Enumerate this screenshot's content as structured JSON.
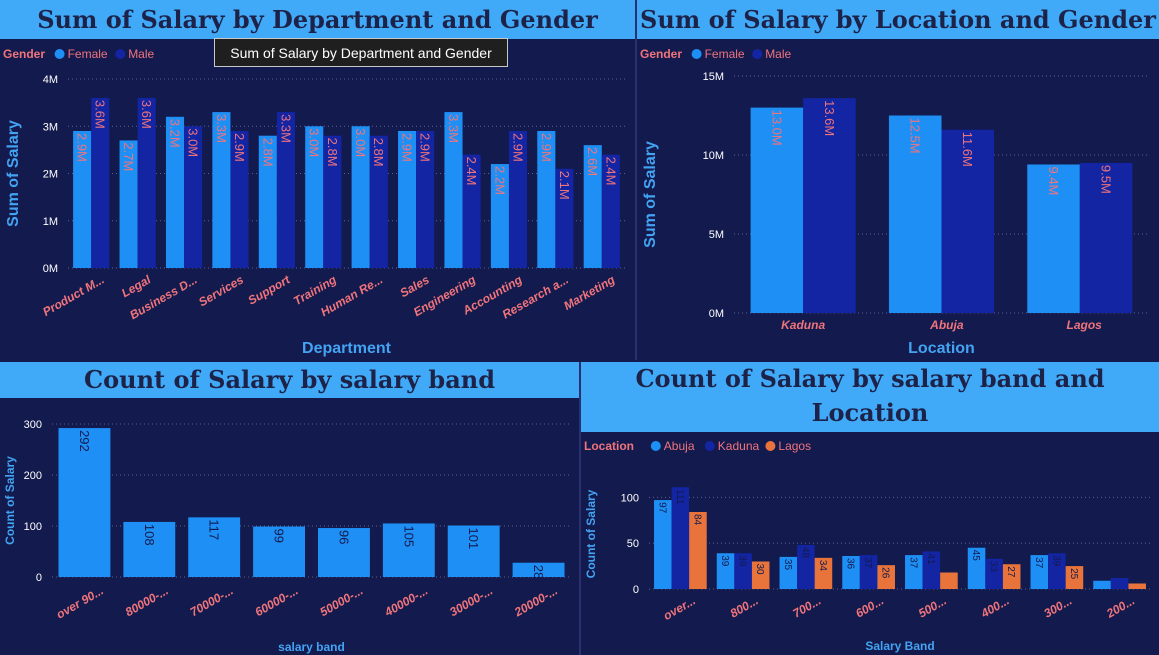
{
  "colors": {
    "female": "#1e8ff5",
    "male": "#1325a2",
    "abuja": "#1e8ff5",
    "kaduna": "#1325a2",
    "lagos": "#e8743b",
    "band": "#1e8ff5",
    "axis_label": "#43a3f3",
    "tick": "#ffffff",
    "category": "#f0747c",
    "legend_title": "#f0747c",
    "legend_text": "#f0747c",
    "data_label_light": "#f0747c",
    "data_label_dark": "#131a4d"
  },
  "tooltip": {
    "text": "Sum of Salary by Department and Gender"
  },
  "chart_data": [
    {
      "id": "dept",
      "type": "bar",
      "title": "Sum of Salary by Department and Gender",
      "legend_title": "Gender",
      "legend_position": "top-left",
      "xlabel": "Department",
      "ylabel": "Sum of Salary",
      "ylim": [
        0,
        4000000
      ],
      "yticks": [
        0,
        1000000,
        2000000,
        3000000,
        4000000
      ],
      "ytick_labels": [
        "0M",
        "1M",
        "2M",
        "3M",
        "4M"
      ],
      "grid": true,
      "categories": [
        "Product M...",
        "Legal",
        "Business D...",
        "Services",
        "Support",
        "Training",
        "Human Re...",
        "Sales",
        "Engineering",
        "Accounting",
        "Research a...",
        "Marketing"
      ],
      "series": [
        {
          "name": "Female",
          "color": "#1e8ff5",
          "values": [
            2900000,
            2700000,
            3200000,
            3300000,
            2800000,
            3000000,
            3000000,
            2900000,
            3300000,
            2200000,
            2900000,
            2600000
          ],
          "labels": [
            "2.9M",
            "2.7M",
            "3.2M",
            "3.3M",
            "2.8M",
            "3.0M",
            "3.0M",
            "2.9M",
            "3.3M",
            "2.2M",
            "2.9M",
            "2.6M"
          ]
        },
        {
          "name": "Male",
          "color": "#1325a2",
          "values": [
            3600000,
            3600000,
            3000000,
            2900000,
            3300000,
            2800000,
            2800000,
            2900000,
            2400000,
            2900000,
            2100000,
            2400000
          ],
          "labels": [
            "3.6M",
            "3.6M",
            "3.0M",
            "2.9M",
            "3.3M",
            "2.8M",
            "2.8M",
            "2.9M",
            "2.4M",
            "2.9M",
            "2.1M",
            "2.4M"
          ]
        }
      ]
    },
    {
      "id": "loc",
      "type": "bar",
      "title": "Sum of Salary by Location and Gender",
      "legend_title": "Gender",
      "legend_position": "top-left",
      "xlabel": "Location",
      "ylabel": "Sum of Salary",
      "ylim": [
        0,
        15000000
      ],
      "yticks": [
        0,
        5000000,
        10000000,
        15000000
      ],
      "ytick_labels": [
        "0M",
        "5M",
        "10M",
        "15M"
      ],
      "grid": true,
      "categories": [
        "Kaduna",
        "Abuja",
        "Lagos"
      ],
      "series": [
        {
          "name": "Female",
          "color": "#1e8ff5",
          "values": [
            13000000,
            12500000,
            9400000
          ],
          "labels": [
            "13.0M",
            "12.5M",
            "9.4M"
          ]
        },
        {
          "name": "Male",
          "color": "#1325a2",
          "values": [
            13600000,
            11600000,
            9500000
          ],
          "labels": [
            "13.6M",
            "11.6M",
            "9.5M"
          ]
        }
      ]
    },
    {
      "id": "band",
      "type": "bar",
      "title": "Count of Salary by salary band",
      "xlabel": "salary band",
      "ylabel": "Count of Salary",
      "ylim": [
        0,
        300
      ],
      "yticks": [
        0,
        100,
        200,
        300
      ],
      "ytick_labels": [
        "0",
        "100",
        "200",
        "300"
      ],
      "grid": true,
      "categories": [
        "over 90...",
        "80000-...",
        "70000-...",
        "60000-...",
        "50000-...",
        "40000-...",
        "30000-...",
        "20000-..."
      ],
      "series": [
        {
          "name": "",
          "color": "#1e8ff5",
          "values": [
            292,
            108,
            117,
            99,
            96,
            105,
            101,
            28
          ],
          "labels": [
            "292",
            "108",
            "117",
            "99",
            "96",
            "105",
            "101",
            "28"
          ]
        }
      ]
    },
    {
      "id": "bandloc",
      "type": "bar",
      "title": "Count of Salary by salary band and Location",
      "legend_title": "Location",
      "legend_position": "top-left",
      "xlabel": "Salary Band",
      "ylabel": "Count of Salary",
      "ylim": [
        0,
        120
      ],
      "yticks": [
        0,
        50,
        100
      ],
      "ytick_labels": [
        "0",
        "50",
        "100"
      ],
      "grid": true,
      "categories": [
        "over...",
        "800...",
        "700...",
        "600...",
        "500...",
        "400...",
        "300...",
        "200..."
      ],
      "series": [
        {
          "name": "Abuja",
          "color": "#1e8ff5",
          "values": [
            97,
            39,
            35,
            36,
            37,
            45,
            37,
            9
          ],
          "labels": [
            "97",
            "39",
            "35",
            "36",
            "37",
            "45",
            "37",
            ""
          ]
        },
        {
          "name": "Kaduna",
          "color": "#1325a2",
          "values": [
            111,
            39,
            48,
            37,
            41,
            33,
            39,
            12
          ],
          "labels": [
            "111",
            "39",
            "48",
            "37",
            "41",
            "33",
            "39",
            ""
          ]
        },
        {
          "name": "Lagos",
          "color": "#e8743b",
          "values": [
            84,
            30,
            34,
            26,
            18,
            27,
            25,
            6
          ],
          "labels": [
            "84",
            "30",
            "34",
            "26",
            "",
            "27",
            "25",
            ""
          ]
        }
      ]
    }
  ]
}
